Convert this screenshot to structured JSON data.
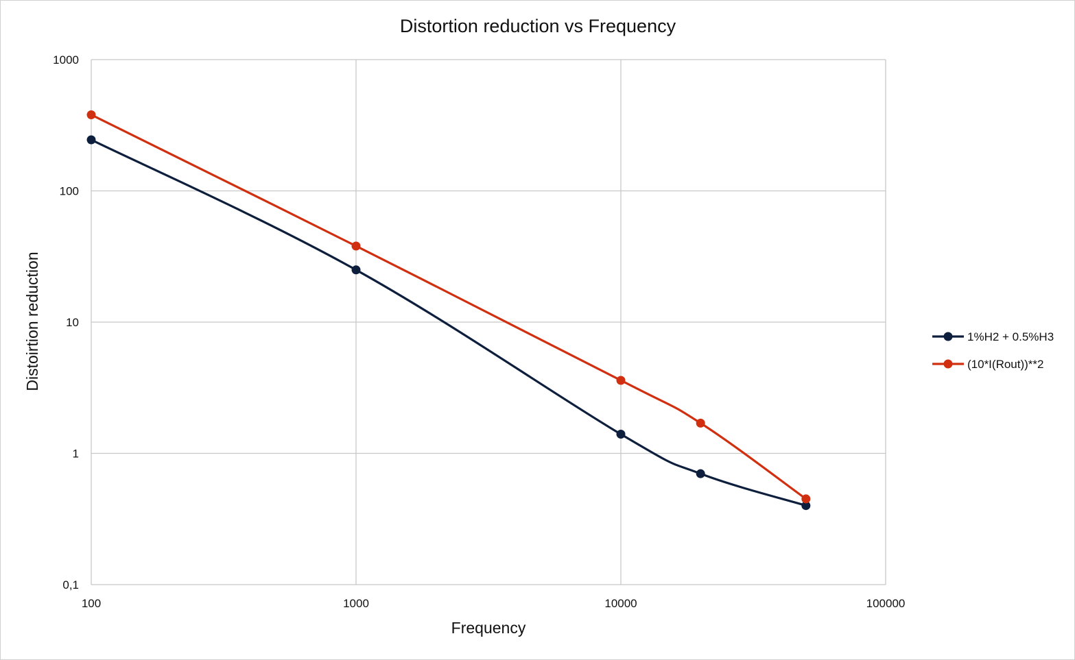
{
  "chart_data": {
    "type": "line",
    "title": "Distortion reduction vs Frequency",
    "xlabel": "Frequency",
    "ylabel": "Distoirtion reduction",
    "x_scale": "log",
    "y_scale": "log",
    "xlim": [
      100,
      100000
    ],
    "ylim": [
      0.1,
      1000
    ],
    "x_ticks": [
      "100",
      "1000",
      "10000",
      "100000"
    ],
    "y_ticks": [
      "0,1",
      "1",
      "10",
      "100",
      "1000"
    ],
    "grid": true,
    "legend_position": "right",
    "series": [
      {
        "name": "1%H2 + 0.5%H3",
        "color": "#0d1f3c",
        "x": [
          100,
          1000,
          10000,
          20000,
          50000
        ],
        "y": [
          245,
          25,
          1.4,
          0.7,
          0.4
        ]
      },
      {
        "name": "(10*I(Rout))**2",
        "color": "#d03010",
        "x": [
          100,
          1000,
          10000,
          20000,
          50000
        ],
        "y": [
          380,
          38,
          3.6,
          1.7,
          0.45
        ]
      }
    ]
  }
}
